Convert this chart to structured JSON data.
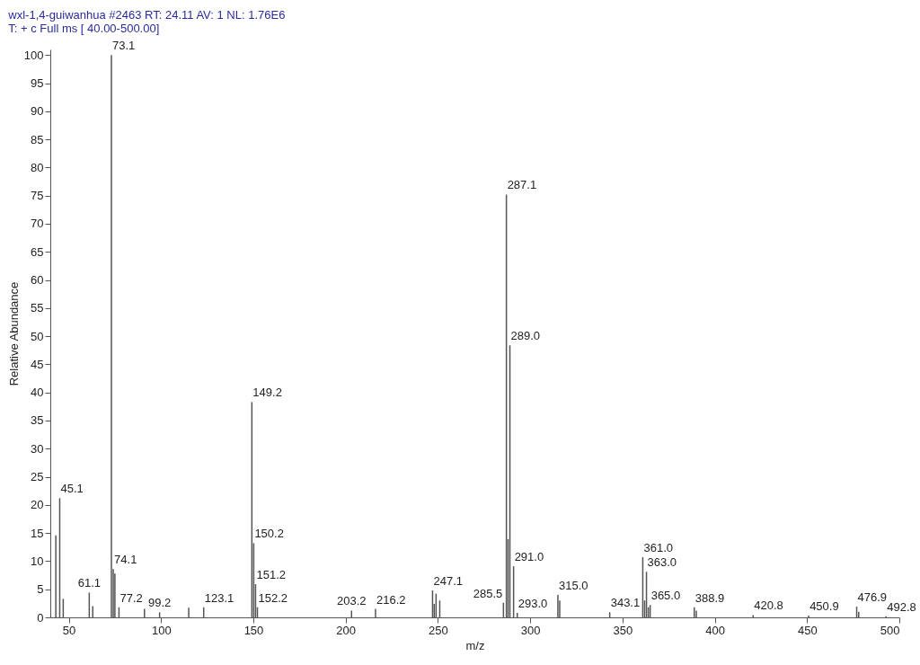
{
  "chart_data": {
    "type": "bar",
    "title": "wxl-1,4-guiwanhua #2463  RT: 24.11  AV: 1  NL: 1.76E6",
    "subtitle": "T: + c Full ms [ 40.00-500.00]",
    "xlabel": "m/z",
    "ylabel": "Relative Abundance",
    "color": "#555555",
    "x": [
      43.0,
      45.1,
      47.0,
      61.1,
      63.0,
      73.1,
      74.1,
      75.0,
      77.2,
      91.0,
      99.2,
      115.0,
      123.1,
      149.2,
      150.2,
      151.2,
      152.2,
      203.2,
      216.2,
      247.1,
      248.0,
      249.0,
      251.0,
      285.5,
      287.1,
      288.0,
      289.0,
      291.0,
      293.0,
      315.0,
      316.0,
      343.1,
      361.0,
      362.0,
      363.0,
      364.0,
      365.0,
      388.9,
      390.0,
      420.8,
      450.9,
      476.9,
      478.0,
      492.8
    ],
    "values": [
      14.6,
      21.2,
      3.3,
      4.4,
      2.0,
      100,
      8.6,
      7.8,
      1.8,
      1.5,
      0.9,
      1.7,
      1.8,
      38.3,
      13.2,
      5.9,
      1.8,
      1.2,
      1.5,
      4.8,
      2.4,
      4.2,
      3.0,
      2.6,
      75.2,
      13.9,
      48.4,
      9.1,
      0.8,
      4.0,
      3.0,
      0.9,
      10.7,
      3.0,
      8.1,
      1.8,
      2.2,
      1.8,
      1.2,
      0.4,
      0.3,
      1.9,
      1.0,
      0.2
    ],
    "xlim": [
      40,
      500
    ],
    "xticks": [
      50,
      100,
      150,
      200,
      250,
      300,
      350,
      400,
      450,
      500
    ],
    "ylim": [
      0,
      101
    ],
    "yticks": [
      0,
      5,
      10,
      15,
      20,
      25,
      30,
      35,
      40,
      45,
      50,
      55,
      60,
      65,
      70,
      75,
      80,
      85,
      90,
      95,
      100
    ],
    "grid": false,
    "annotations": [
      {
        "text": "45.1",
        "x": 45.1,
        "y": 21.2
      },
      {
        "text": "61.1",
        "x": 61.1,
        "y": 4.4
      },
      {
        "text": "73.1",
        "x": 73.1,
        "y": 100
      },
      {
        "text": "74.1",
        "x": 74.1,
        "y": 8.6
      },
      {
        "text": "77.2",
        "x": 77.2,
        "y": 1.8
      },
      {
        "text": "99.2",
        "x": 99.2,
        "y": 0.9
      },
      {
        "text": "123.1",
        "x": 123.1,
        "y": 1.8
      },
      {
        "text": "149.2",
        "x": 149.2,
        "y": 38.3
      },
      {
        "text": "150.2",
        "x": 150.2,
        "y": 13.2
      },
      {
        "text": "151.2",
        "x": 151.2,
        "y": 5.9
      },
      {
        "text": "152.2",
        "x": 152.2,
        "y": 1.8
      },
      {
        "text": "203.2",
        "x": 203.2,
        "y": 1.2
      },
      {
        "text": "216.2",
        "x": 216.2,
        "y": 1.5
      },
      {
        "text": "247.1",
        "x": 247.1,
        "y": 4.8
      },
      {
        "text": "285.5",
        "x": 285.5,
        "y": 2.6
      },
      {
        "text": "287.1",
        "x": 287.1,
        "y": 75.2
      },
      {
        "text": "289.0",
        "x": 289.0,
        "y": 48.4
      },
      {
        "text": "291.0",
        "x": 291.0,
        "y": 9.1
      },
      {
        "text": "293.0",
        "x": 293.0,
        "y": 0.8
      },
      {
        "text": "315.0",
        "x": 315.0,
        "y": 4.0
      },
      {
        "text": "343.1",
        "x": 343.1,
        "y": 0.9
      },
      {
        "text": "361.0",
        "x": 361.0,
        "y": 10.7
      },
      {
        "text": "363.0",
        "x": 363.0,
        "y": 8.1
      },
      {
        "text": "365.0",
        "x": 365.0,
        "y": 2.2
      },
      {
        "text": "388.9",
        "x": 388.9,
        "y": 1.8
      },
      {
        "text": "420.8",
        "x": 420.8,
        "y": 0.4
      },
      {
        "text": "450.9",
        "x": 450.9,
        "y": 0.3
      },
      {
        "text": "476.9",
        "x": 476.9,
        "y": 1.9
      },
      {
        "text": "492.8",
        "x": 492.8,
        "y": 0.2
      }
    ]
  }
}
